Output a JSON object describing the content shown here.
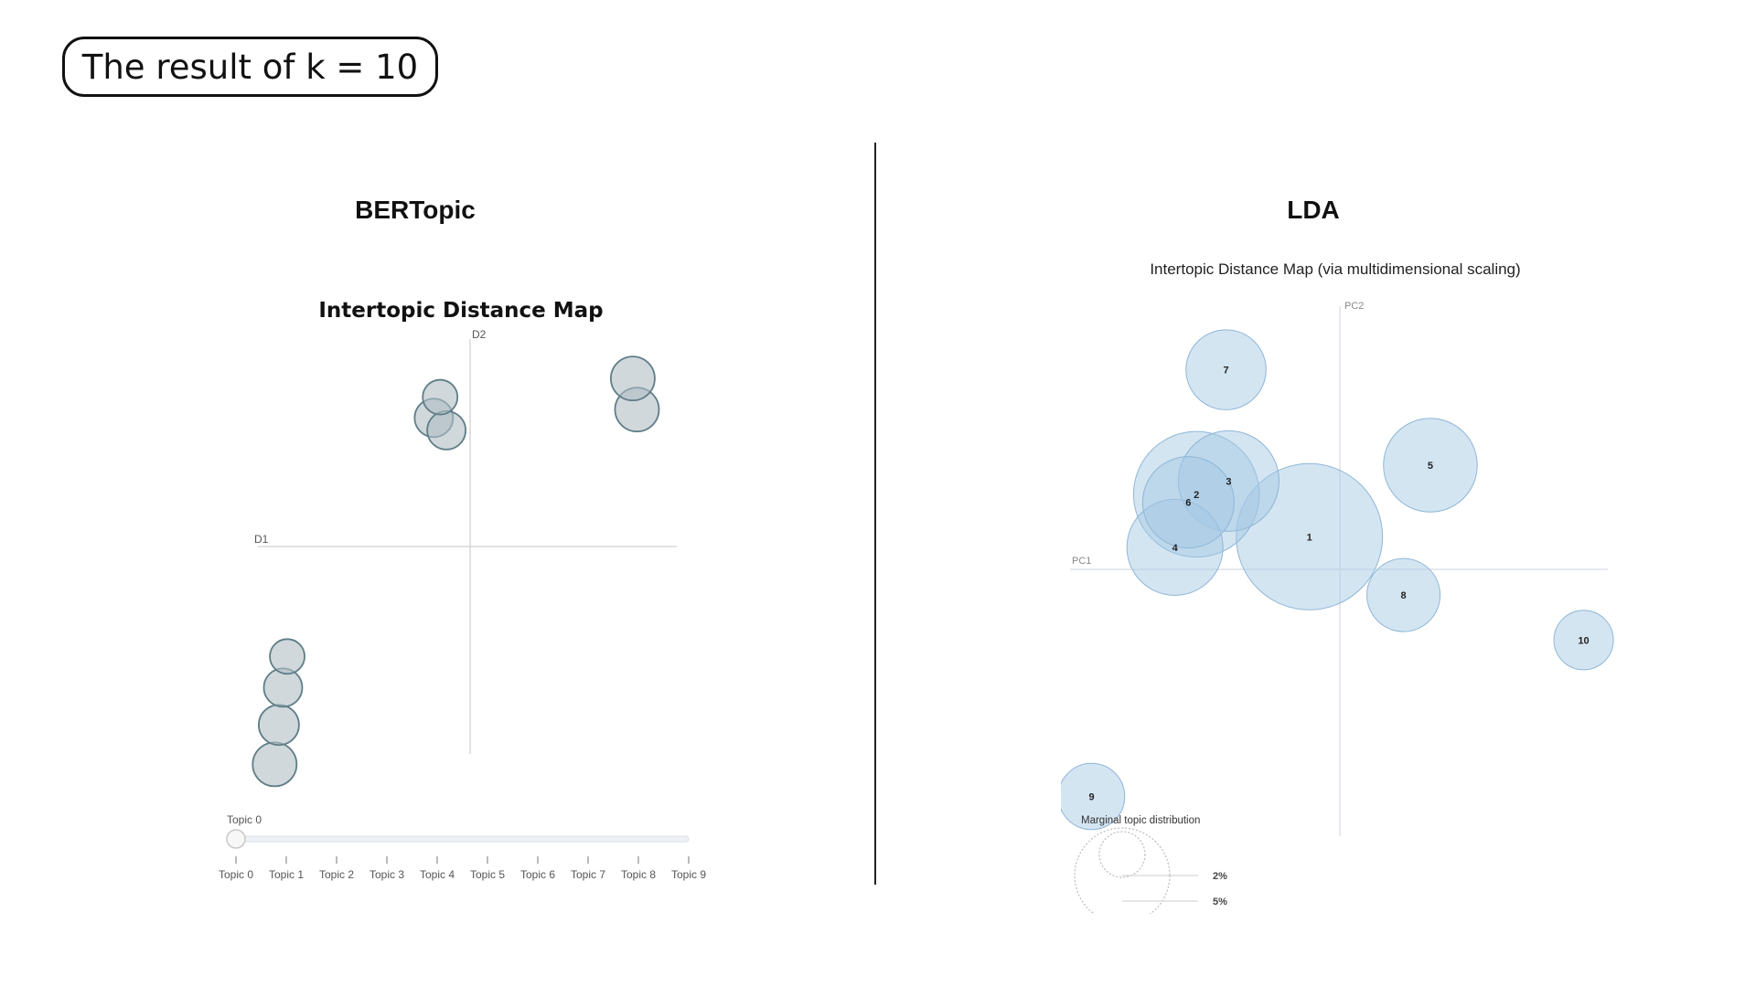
{
  "header": {
    "title": "The result of k = 10"
  },
  "panels": {
    "left_title": "BERTopic",
    "right_title": "LDA"
  },
  "chart_data": [
    {
      "type": "scatter",
      "title": "Intertopic Distance Map",
      "xlabel": "D1",
      "ylabel": "D2",
      "xlim": [
        -10,
        10
      ],
      "ylim": [
        -10,
        10
      ],
      "grid": false,
      "color": "#b0bec5",
      "stroke": "#5f7d86",
      "points": [
        {
          "x": -9.2,
          "y": -10.5,
          "size": 24
        },
        {
          "x": -9.0,
          "y": -8.6,
          "size": 22
        },
        {
          "x": -8.8,
          "y": -6.8,
          "size": 21
        },
        {
          "x": -8.6,
          "y": -5.3,
          "size": 19
        },
        {
          "x": -1.6,
          "y": 6.2,
          "size": 21
        },
        {
          "x": -1.0,
          "y": 5.6,
          "size": 21
        },
        {
          "x": -1.3,
          "y": 7.2,
          "size": 19
        },
        {
          "x": 8.1,
          "y": 6.6,
          "size": 24
        },
        {
          "x": 7.9,
          "y": 8.1,
          "size": 24
        }
      ],
      "slider": {
        "current_label": "Topic 0",
        "value": 0,
        "ticks": [
          "Topic 0",
          "Topic 1",
          "Topic 2",
          "Topic 3",
          "Topic 4",
          "Topic 5",
          "Topic 6",
          "Topic 7",
          "Topic 8",
          "Topic 9"
        ]
      }
    },
    {
      "type": "scatter",
      "title": "Intertopic Distance Map (via multidimensional scaling)",
      "xlabel": "PC1",
      "ylabel": "PC2",
      "xlim": [
        -10,
        10
      ],
      "ylim": [
        -10,
        10
      ],
      "grid": false,
      "color": "#a6c8e3",
      "stroke": "#8fb6d6",
      "points": [
        {
          "label": "1",
          "x": -1.1,
          "y": 1.3,
          "size": 64
        },
        {
          "label": "2",
          "x": -5.3,
          "y": 2.9,
          "size": 55
        },
        {
          "label": "3",
          "x": -4.1,
          "y": 3.4,
          "size": 44
        },
        {
          "label": "4",
          "x": -6.1,
          "y": 0.9,
          "size": 42
        },
        {
          "label": "5",
          "x": 3.4,
          "y": 4.0,
          "size": 41
        },
        {
          "label": "6",
          "x": -5.6,
          "y": 2.6,
          "size": 40
        },
        {
          "label": "7",
          "x": -4.2,
          "y": 7.6,
          "size": 35
        },
        {
          "label": "8",
          "x": 2.4,
          "y": -0.9,
          "size": 32
        },
        {
          "label": "9",
          "x": -9.2,
          "y": -8.5,
          "size": 29
        },
        {
          "label": "10",
          "x": 9.1,
          "y": -2.6,
          "size": 26
        }
      ],
      "legend": {
        "title": "Marginal topic distribution",
        "entries": [
          "2%",
          "5%"
        ],
        "placement": "bottom-left"
      }
    }
  ]
}
